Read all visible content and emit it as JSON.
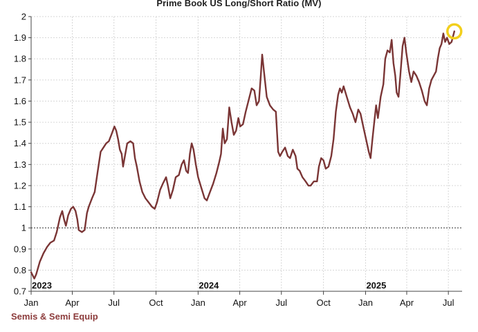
{
  "chart_data": {
    "type": "line",
    "title": "Prime Book US Long/Short Ratio (MV)",
    "source_label": "Semis & Semi Equip",
    "xlabel": "",
    "ylabel": "",
    "ylim": [
      0.7,
      2.0
    ],
    "yticks": [
      "0.7",
      "0.8",
      "0.9",
      "1",
      "1.1",
      "1.2",
      "1.3",
      "1.4",
      "1.5",
      "1.6",
      "1.7",
      "1.8",
      "1.9",
      "2"
    ],
    "xlim": [
      "2023-01-01",
      "2025-07-31"
    ],
    "xticks": [
      {
        "date": "2023-01-01",
        "label": "Jan"
      },
      {
        "date": "2023-04-01",
        "label": "Apr"
      },
      {
        "date": "2023-07-01",
        "label": "Jul"
      },
      {
        "date": "2023-10-01",
        "label": "Oct"
      },
      {
        "date": "2024-01-01",
        "label": "Jan"
      },
      {
        "date": "2024-04-01",
        "label": "Apr"
      },
      {
        "date": "2024-07-01",
        "label": "Jul"
      },
      {
        "date": "2024-10-01",
        "label": "Oct"
      },
      {
        "date": "2025-01-01",
        "label": "Jan"
      },
      {
        "date": "2025-04-01",
        "label": "Apr"
      },
      {
        "date": "2025-07-01",
        "label": "Jul"
      }
    ],
    "year_labels": [
      {
        "date": "2023-01-01",
        "label": "2023"
      },
      {
        "date": "2024-01-01",
        "label": "2024"
      },
      {
        "date": "2025-01-01",
        "label": "2025"
      }
    ],
    "reference_line": {
      "y": 1.0,
      "style": "dotted"
    },
    "grid": true,
    "line_color": "#7a3535",
    "highlight": {
      "date": "2025-07-14",
      "y": 1.93,
      "color": "#f2cf1c"
    },
    "series": [
      {
        "points": [
          [
            "2023-01-01",
            0.79
          ],
          [
            "2023-01-08",
            0.76
          ],
          [
            "2023-01-12",
            0.78
          ],
          [
            "2023-01-20",
            0.84
          ],
          [
            "2023-01-28",
            0.88
          ],
          [
            "2023-02-05",
            0.91
          ],
          [
            "2023-02-12",
            0.93
          ],
          [
            "2023-02-20",
            0.94
          ],
          [
            "2023-02-26",
            0.98
          ],
          [
            "2023-03-05",
            1.05
          ],
          [
            "2023-03-10",
            1.08
          ],
          [
            "2023-03-14",
            1.04
          ],
          [
            "2023-03-18",
            1.01
          ],
          [
            "2023-03-23",
            1.06
          ],
          [
            "2023-03-29",
            1.09
          ],
          [
            "2023-04-03",
            1.1
          ],
          [
            "2023-04-08",
            1.08
          ],
          [
            "2023-04-12",
            1.04
          ],
          [
            "2023-04-15",
            0.99
          ],
          [
            "2023-04-22",
            0.98
          ],
          [
            "2023-04-28",
            0.99
          ],
          [
            "2023-05-03",
            1.07
          ],
          [
            "2023-05-07",
            1.1
          ],
          [
            "2023-05-14",
            1.14
          ],
          [
            "2023-05-20",
            1.17
          ],
          [
            "2023-05-26",
            1.26
          ],
          [
            "2023-06-02",
            1.36
          ],
          [
            "2023-06-08",
            1.38
          ],
          [
            "2023-06-14",
            1.4
          ],
          [
            "2023-06-20",
            1.41
          ],
          [
            "2023-06-27",
            1.45
          ],
          [
            "2023-07-02",
            1.48
          ],
          [
            "2023-07-06",
            1.46
          ],
          [
            "2023-07-10",
            1.42
          ],
          [
            "2023-07-14",
            1.37
          ],
          [
            "2023-07-18",
            1.35
          ],
          [
            "2023-07-21",
            1.29
          ],
          [
            "2023-07-25",
            1.34
          ],
          [
            "2023-07-30",
            1.4
          ],
          [
            "2023-08-06",
            1.41
          ],
          [
            "2023-08-12",
            1.4
          ],
          [
            "2023-08-16",
            1.33
          ],
          [
            "2023-08-20",
            1.29
          ],
          [
            "2023-08-26",
            1.22
          ],
          [
            "2023-09-01",
            1.17
          ],
          [
            "2023-09-08",
            1.14
          ],
          [
            "2023-09-15",
            1.12
          ],
          [
            "2023-09-22",
            1.1
          ],
          [
            "2023-09-28",
            1.09
          ],
          [
            "2023-10-03",
            1.12
          ],
          [
            "2023-10-10",
            1.18
          ],
          [
            "2023-10-16",
            1.21
          ],
          [
            "2023-10-23",
            1.24
          ],
          [
            "2023-10-27",
            1.2
          ],
          [
            "2023-11-01",
            1.14
          ],
          [
            "2023-11-07",
            1.18
          ],
          [
            "2023-11-13",
            1.24
          ],
          [
            "2023-11-20",
            1.25
          ],
          [
            "2023-11-26",
            1.3
          ],
          [
            "2023-12-01",
            1.32
          ],
          [
            "2023-12-06",
            1.27
          ],
          [
            "2023-12-10",
            1.26
          ],
          [
            "2023-12-14",
            1.35
          ],
          [
            "2023-12-18",
            1.4
          ],
          [
            "2023-12-22",
            1.37
          ],
          [
            "2023-12-27",
            1.3
          ],
          [
            "2024-01-01",
            1.24
          ],
          [
            "2024-01-08",
            1.19
          ],
          [
            "2024-01-15",
            1.14
          ],
          [
            "2024-01-20",
            1.13
          ],
          [
            "2024-01-27",
            1.17
          ],
          [
            "2024-02-03",
            1.21
          ],
          [
            "2024-02-10",
            1.26
          ],
          [
            "2024-02-16",
            1.31
          ],
          [
            "2024-02-20",
            1.35
          ],
          [
            "2024-02-24",
            1.47
          ],
          [
            "2024-02-28",
            1.4
          ],
          [
            "2024-03-04",
            1.42
          ],
          [
            "2024-03-09",
            1.57
          ],
          [
            "2024-03-14",
            1.5
          ],
          [
            "2024-03-19",
            1.44
          ],
          [
            "2024-03-24",
            1.46
          ],
          [
            "2024-03-29",
            1.52
          ],
          [
            "2024-04-02",
            1.48
          ],
          [
            "2024-04-08",
            1.49
          ],
          [
            "2024-04-14",
            1.55
          ],
          [
            "2024-04-20",
            1.6
          ],
          [
            "2024-04-27",
            1.66
          ],
          [
            "2024-05-03",
            1.65
          ],
          [
            "2024-05-08",
            1.58
          ],
          [
            "2024-05-13",
            1.6
          ],
          [
            "2024-05-17",
            1.72
          ],
          [
            "2024-05-20",
            1.82
          ],
          [
            "2024-05-24",
            1.74
          ],
          [
            "2024-05-30",
            1.62
          ],
          [
            "2024-06-06",
            1.58
          ],
          [
            "2024-06-13",
            1.56
          ],
          [
            "2024-06-19",
            1.55
          ],
          [
            "2024-06-24",
            1.36
          ],
          [
            "2024-06-28",
            1.34
          ],
          [
            "2024-07-03",
            1.36
          ],
          [
            "2024-07-09",
            1.38
          ],
          [
            "2024-07-15",
            1.34
          ],
          [
            "2024-07-20",
            1.33
          ],
          [
            "2024-07-26",
            1.37
          ],
          [
            "2024-08-01",
            1.34
          ],
          [
            "2024-08-05",
            1.28
          ],
          [
            "2024-08-10",
            1.27
          ],
          [
            "2024-08-16",
            1.24
          ],
          [
            "2024-08-23",
            1.22
          ],
          [
            "2024-08-29",
            1.2
          ],
          [
            "2024-09-03",
            1.2
          ],
          [
            "2024-09-10",
            1.22
          ],
          [
            "2024-09-17",
            1.22
          ],
          [
            "2024-09-21",
            1.29
          ],
          [
            "2024-09-26",
            1.33
          ],
          [
            "2024-10-01",
            1.32
          ],
          [
            "2024-10-06",
            1.28
          ],
          [
            "2024-10-12",
            1.29
          ],
          [
            "2024-10-18",
            1.34
          ],
          [
            "2024-10-23",
            1.42
          ],
          [
            "2024-10-28",
            1.55
          ],
          [
            "2024-11-02",
            1.63
          ],
          [
            "2024-11-06",
            1.66
          ],
          [
            "2024-11-10",
            1.64
          ],
          [
            "2024-11-14",
            1.67
          ],
          [
            "2024-11-21",
            1.62
          ],
          [
            "2024-11-28",
            1.57
          ],
          [
            "2024-12-04",
            1.54
          ],
          [
            "2024-12-10",
            1.5
          ],
          [
            "2024-12-16",
            1.56
          ],
          [
            "2024-12-21",
            1.54
          ],
          [
            "2024-12-27",
            1.48
          ],
          [
            "2025-01-03",
            1.41
          ],
          [
            "2025-01-08",
            1.36
          ],
          [
            "2025-01-12",
            1.33
          ],
          [
            "2025-01-16",
            1.42
          ],
          [
            "2025-01-20",
            1.5
          ],
          [
            "2025-01-24",
            1.58
          ],
          [
            "2025-01-28",
            1.52
          ],
          [
            "2025-02-03",
            1.62
          ],
          [
            "2025-02-09",
            1.68
          ],
          [
            "2025-02-13",
            1.8
          ],
          [
            "2025-02-18",
            1.84
          ],
          [
            "2025-02-23",
            1.83
          ],
          [
            "2025-02-27",
            1.89
          ],
          [
            "2025-03-03",
            1.78
          ],
          [
            "2025-03-07",
            1.72
          ],
          [
            "2025-03-10",
            1.64
          ],
          [
            "2025-03-14",
            1.62
          ],
          [
            "2025-03-18",
            1.72
          ],
          [
            "2025-03-23",
            1.86
          ],
          [
            "2025-03-27",
            1.9
          ],
          [
            "2025-03-31",
            1.83
          ],
          [
            "2025-04-06",
            1.74
          ],
          [
            "2025-04-11",
            1.69
          ],
          [
            "2025-04-16",
            1.74
          ],
          [
            "2025-04-22",
            1.72
          ],
          [
            "2025-04-28",
            1.69
          ],
          [
            "2025-05-04",
            1.65
          ],
          [
            "2025-05-10",
            1.6
          ],
          [
            "2025-05-15",
            1.58
          ],
          [
            "2025-05-20",
            1.66
          ],
          [
            "2025-05-25",
            1.7
          ],
          [
            "2025-05-30",
            1.72
          ],
          [
            "2025-06-04",
            1.74
          ],
          [
            "2025-06-08",
            1.8
          ],
          [
            "2025-06-12",
            1.85
          ],
          [
            "2025-06-16",
            1.87
          ],
          [
            "2025-06-20",
            1.92
          ],
          [
            "2025-06-24",
            1.88
          ],
          [
            "2025-06-28",
            1.9
          ],
          [
            "2025-07-03",
            1.87
          ],
          [
            "2025-07-08",
            1.88
          ],
          [
            "2025-07-14",
            1.93
          ]
        ]
      }
    ]
  }
}
